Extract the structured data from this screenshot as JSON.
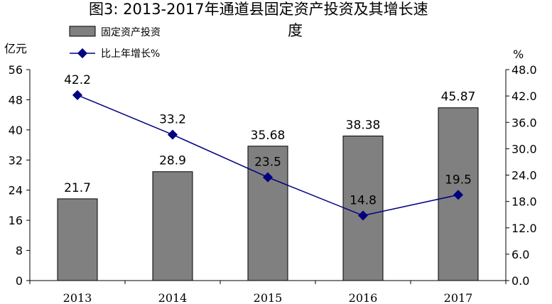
{
  "chart_data": {
    "type": "bar",
    "title": "图3:       2013-2017年通道县固定资产投资及其增长速度",
    "title_lines": [
      "图3:       2013-2017年通道县固定资产投资及其增长速",
      "度"
    ],
    "categories": [
      "2013",
      "2014",
      "2015",
      "2016",
      "2017"
    ],
    "series": [
      {
        "name": "固定资产投资",
        "type": "bar",
        "axis": "left",
        "color": "#808080",
        "values": [
          21.7,
          28.9,
          35.68,
          38.38,
          45.87
        ],
        "labels": [
          "21.7",
          "28.9",
          "35.68",
          "38.38",
          "45.87"
        ]
      },
      {
        "name": "比上年增长%",
        "type": "line",
        "axis": "right",
        "color": "#000080",
        "values": [
          42.2,
          33.2,
          23.5,
          14.8,
          19.5
        ],
        "labels": [
          "42.2",
          "33.2",
          "23.5",
          "14.8",
          "19.5"
        ]
      }
    ],
    "y_left": {
      "label": "亿元",
      "ylim": [
        0,
        56
      ],
      "ticks": [
        "0",
        "8",
        "16",
        "24",
        "32",
        "40",
        "48",
        "56"
      ]
    },
    "y_right": {
      "label": "%",
      "ylim": [
        0,
        48
      ],
      "ticks": [
        "0.0",
        "6.0",
        "12.0",
        "18.0",
        "24.0",
        "30.0",
        "36.0",
        "42.0",
        "48.0"
      ]
    },
    "legend": "top-left",
    "grid": false
  }
}
